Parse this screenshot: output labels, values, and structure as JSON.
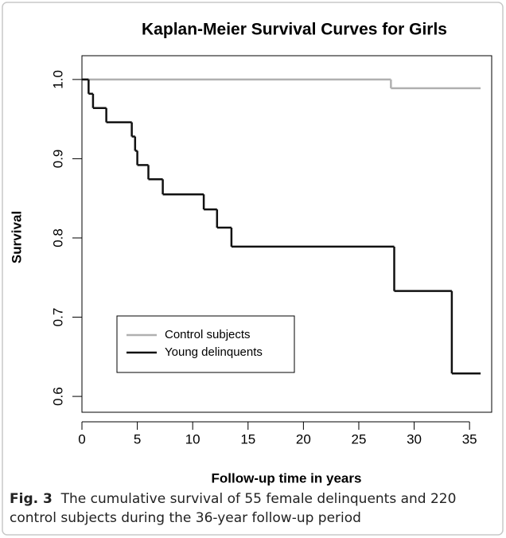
{
  "chart_data": {
    "type": "km-step",
    "title": "Kaplan-Meier Survival Curves for Girls",
    "x_label": "Follow-up time in years",
    "y_label": "Survival",
    "xlim": [
      0,
      37
    ],
    "ylim": [
      0.58,
      1.03
    ],
    "xticks": [
      0,
      5,
      10,
      15,
      20,
      25,
      30,
      35
    ],
    "yticks": [
      0.6,
      0.7,
      0.8,
      0.9,
      {
        "value": 1,
        "label": "1.0"
      }
    ],
    "legend": "bottom-left",
    "series": [
      {
        "name": "Control subjects",
        "color": "#b0b0b0",
        "x": [
          0,
          27.9,
          36
        ],
        "values": [
          1.0,
          0.989,
          0.989
        ]
      },
      {
        "name": "Young delinquents",
        "color": "#111111",
        "x": [
          0,
          0.6,
          1.0,
          2.2,
          4.5,
          4.8,
          5.0,
          6.0,
          7.3,
          11.0,
          12.2,
          13.5,
          28.2,
          33.4,
          36
        ],
        "values": [
          1.0,
          0.982,
          0.964,
          0.946,
          0.928,
          0.91,
          0.892,
          0.874,
          0.855,
          0.836,
          0.813,
          0.789,
          0.733,
          0.629,
          0.629
        ]
      }
    ]
  },
  "caption": {
    "label": "Fig. 3",
    "text": "The cumulative survival of 55 female delinquents and 220 control subjects during the 36-year follow-up period"
  }
}
